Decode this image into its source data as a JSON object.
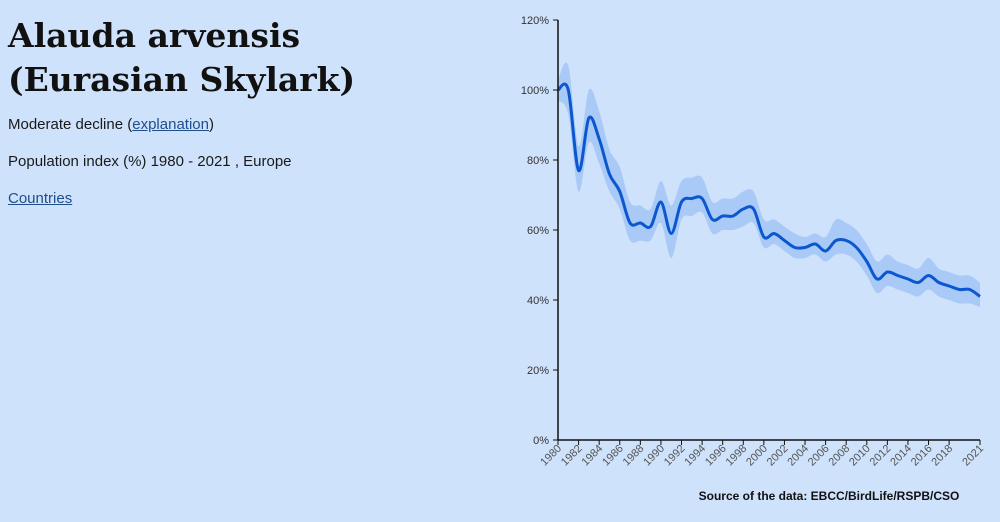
{
  "species": {
    "latin": "Alauda arvensis",
    "common": "(Eurasian Skylark)"
  },
  "trend": {
    "label": "Moderate decline",
    "open_paren": "(",
    "link": "explanation",
    "close_paren": ")"
  },
  "subtitle": "Population index (%) 1980 - 2021 , Europe",
  "countries_link": "Countries",
  "colors": {
    "background": "#cfe2fb",
    "line": "#0b57d0",
    "band": "#a9c9f7",
    "axis": "#111111"
  },
  "chart_data": {
    "type": "line",
    "title": "",
    "xlabel": "",
    "ylabel": "",
    "source": "Source of the data: EBCC/BirdLife/RSPB/CSO",
    "xlim": [
      1980,
      2021
    ],
    "ylim": [
      0,
      120
    ],
    "y_ticks": [
      "0%",
      "20%",
      "40%",
      "60%",
      "80%",
      "100%",
      "120%"
    ],
    "x_ticks": [
      "1980",
      "1982",
      "1984",
      "1986",
      "1988",
      "1990",
      "1992",
      "1994",
      "1996",
      "1998",
      "2000",
      "2002",
      "2004",
      "2006",
      "2008",
      "2010",
      "2012",
      "2014",
      "2016",
      "2018",
      "2021"
    ],
    "grid": false,
    "series": [
      {
        "x": [
          1980,
          1981,
          1982,
          1983,
          1984,
          1985,
          1986,
          1987,
          1988,
          1989,
          1990,
          1991,
          1992,
          1993,
          1994,
          1995,
          1996,
          1997,
          1998,
          1999,
          2000,
          2001,
          2002,
          2003,
          2004,
          2005,
          2006,
          2007,
          2008,
          2009,
          2010,
          2011,
          2012,
          2013,
          2014,
          2015,
          2016,
          2017,
          2018,
          2019,
          2020,
          2021
        ],
        "values": [
          100,
          100,
          77,
          92,
          86,
          76,
          71,
          62,
          62,
          61,
          68,
          59,
          68,
          69,
          69,
          63,
          64,
          64,
          66,
          66,
          58,
          59,
          57,
          55,
          55,
          56,
          54,
          57,
          57,
          55,
          51,
          46,
          48,
          47,
          46,
          45,
          47,
          45,
          44,
          43,
          43,
          41
        ],
        "lower": [
          97,
          93,
          71,
          85,
          79,
          71,
          66,
          57,
          57,
          57,
          62,
          52,
          63,
          64,
          65,
          59,
          60,
          60,
          61,
          62,
          55,
          56,
          54,
          52,
          52,
          53,
          51,
          53,
          53,
          51,
          47,
          42,
          44,
          43,
          42,
          41,
          43,
          41,
          40,
          39,
          39,
          38
        ],
        "upper": [
          103,
          107,
          84,
          100,
          94,
          83,
          78,
          68,
          67,
          66,
          74,
          67,
          74,
          75,
          75,
          68,
          69,
          69,
          71,
          71,
          63,
          63,
          61,
          59,
          58,
          59,
          58,
          63,
          62,
          60,
          56,
          51,
          53,
          51,
          50,
          49,
          52,
          49,
          48,
          47,
          47,
          45
        ]
      }
    ]
  }
}
